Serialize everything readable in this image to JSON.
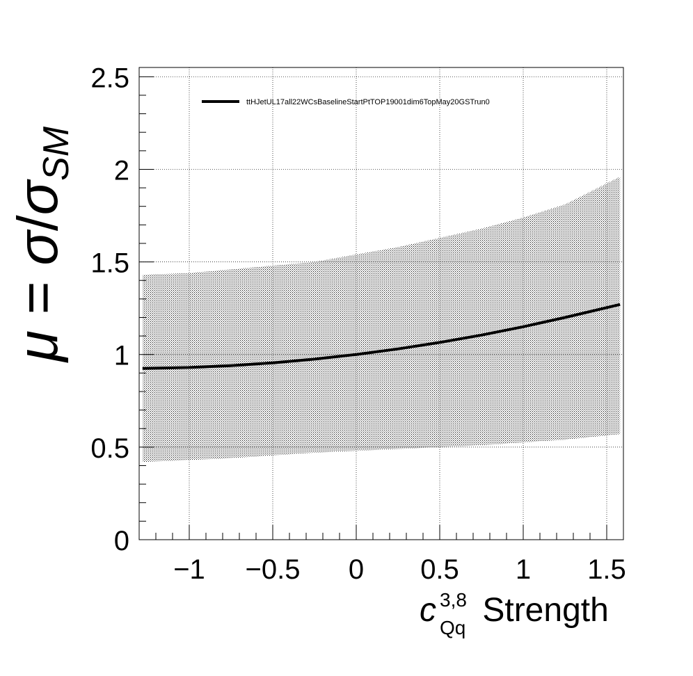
{
  "chart_data": {
    "type": "line",
    "title": "",
    "xlabel": {
      "symbol": "c",
      "superscript": "3,8",
      "subscript": "Qq",
      "suffix": " Strength"
    },
    "ylabel": {
      "mu": "μ",
      "equals": " = ",
      "sigma": "σ",
      "slash": "/",
      "sigma_sm": "σ",
      "sm_subscript": "SM"
    },
    "xlim": [
      -1.3,
      1.6
    ],
    "ylim": [
      0,
      2.55
    ],
    "x_major_ticks": [
      -1,
      -0.5,
      0,
      0.5,
      1,
      1.5
    ],
    "x_tick_labels": [
      "−1",
      "−0.5",
      "0",
      "0.5",
      "1",
      "1.5"
    ],
    "y_major_ticks": [
      0,
      0.5,
      1,
      1.5,
      2,
      2.5
    ],
    "y_tick_labels": [
      "0",
      "0.5",
      "1",
      "1.5",
      "2",
      "2.5"
    ],
    "grid": true,
    "legend_placement": "top-left",
    "series": [
      {
        "name": "ttHJetUL17all22WCsBaselineStartPtTOP19001dim6TopMay20GSTrun0",
        "color": "#000000",
        "x": [
          -1.28,
          -1.0,
          -0.75,
          -0.5,
          -0.25,
          0.0,
          0.25,
          0.5,
          0.75,
          1.0,
          1.25,
          1.58
        ],
        "y": [
          0.925,
          0.93,
          0.94,
          0.955,
          0.975,
          1.0,
          1.03,
          1.065,
          1.105,
          1.15,
          1.2,
          1.27
        ]
      }
    ],
    "band": {
      "color": "#000000",
      "x": [
        -1.28,
        -1.0,
        -0.75,
        -0.5,
        -0.25,
        0.0,
        0.25,
        0.5,
        0.75,
        1.0,
        1.25,
        1.58
      ],
      "upper": [
        1.43,
        1.44,
        1.46,
        1.48,
        1.5,
        1.54,
        1.58,
        1.63,
        1.68,
        1.74,
        1.81,
        1.96
      ],
      "lower": [
        0.42,
        0.43,
        0.44,
        0.455,
        0.47,
        0.48,
        0.49,
        0.5,
        0.51,
        0.525,
        0.54,
        0.57
      ]
    }
  }
}
